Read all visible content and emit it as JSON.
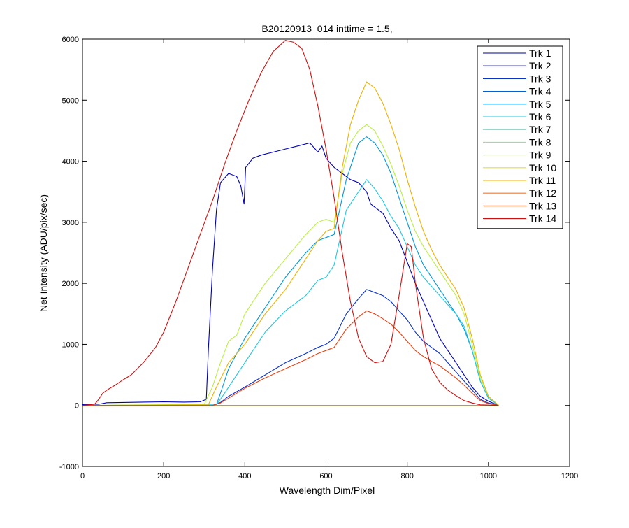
{
  "chart_data": {
    "type": "line",
    "title": "B20120913_014 inttime = 1.5,",
    "xlabel": "Wavelength Dim/Pixel",
    "ylabel": "Net Intensity (ADU/pix/sec)",
    "xlim": [
      0,
      1200
    ],
    "ylim": [
      -1000,
      6000
    ],
    "xticks": [
      0,
      200,
      400,
      600,
      800,
      1000,
      1200
    ],
    "yticks": [
      -1000,
      0,
      1000,
      2000,
      3000,
      4000,
      5000,
      6000
    ],
    "grid": false,
    "legend_position": "top-right",
    "series": [
      {
        "name": "Trk 1",
        "color": "#00008F",
        "points": [
          [
            0,
            0
          ],
          [
            1025,
            0
          ]
        ]
      },
      {
        "name": "Trk 2",
        "color": "#0000B8",
        "points": [
          [
            0,
            15
          ],
          [
            40,
            20
          ],
          [
            60,
            45
          ],
          [
            100,
            50
          ],
          [
            150,
            55
          ],
          [
            200,
            60
          ],
          [
            250,
            55
          ],
          [
            290,
            60
          ],
          [
            305,
            100
          ],
          [
            310,
            900
          ],
          [
            320,
            2200
          ],
          [
            330,
            3200
          ],
          [
            340,
            3650
          ],
          [
            360,
            3800
          ],
          [
            380,
            3750
          ],
          [
            390,
            3600
          ],
          [
            398,
            3300
          ],
          [
            402,
            3900
          ],
          [
            420,
            4050
          ],
          [
            440,
            4100
          ],
          [
            470,
            4150
          ],
          [
            500,
            4200
          ],
          [
            530,
            4250
          ],
          [
            560,
            4300
          ],
          [
            580,
            4150
          ],
          [
            590,
            4250
          ],
          [
            600,
            4050
          ],
          [
            620,
            3900
          ],
          [
            640,
            3800
          ],
          [
            660,
            3700
          ],
          [
            680,
            3650
          ],
          [
            700,
            3500
          ],
          [
            710,
            3300
          ],
          [
            740,
            3150
          ],
          [
            760,
            2900
          ],
          [
            780,
            2700
          ],
          [
            800,
            2350
          ],
          [
            820,
            2000
          ],
          [
            840,
            1700
          ],
          [
            860,
            1400
          ],
          [
            880,
            1100
          ],
          [
            900,
            900
          ],
          [
            920,
            700
          ],
          [
            940,
            500
          ],
          [
            960,
            300
          ],
          [
            980,
            150
          ],
          [
            1000,
            70
          ],
          [
            1025,
            0
          ]
        ]
      },
      {
        "name": "Trk 3",
        "color": "#0A33C8",
        "points": [
          [
            0,
            0
          ],
          [
            320,
            0
          ],
          [
            340,
            50
          ],
          [
            360,
            150
          ],
          [
            400,
            300
          ],
          [
            450,
            500
          ],
          [
            500,
            700
          ],
          [
            550,
            850
          ],
          [
            580,
            950
          ],
          [
            600,
            1000
          ],
          [
            620,
            1100
          ],
          [
            650,
            1500
          ],
          [
            680,
            1750
          ],
          [
            700,
            1900
          ],
          [
            720,
            1850
          ],
          [
            740,
            1800
          ],
          [
            760,
            1700
          ],
          [
            780,
            1550
          ],
          [
            800,
            1400
          ],
          [
            820,
            1200
          ],
          [
            840,
            1050
          ],
          [
            860,
            950
          ],
          [
            880,
            850
          ],
          [
            900,
            700
          ],
          [
            920,
            550
          ],
          [
            940,
            400
          ],
          [
            960,
            250
          ],
          [
            980,
            100
          ],
          [
            1000,
            40
          ],
          [
            1025,
            0
          ]
        ]
      },
      {
        "name": "Trk 4",
        "color": "#0060D0",
        "points": [
          [
            0,
            0
          ],
          [
            1025,
            0
          ]
        ]
      },
      {
        "name": "Trk 5",
        "color": "#0098DE",
        "points": [
          [
            0,
            0
          ],
          [
            330,
            10
          ],
          [
            345,
            300
          ],
          [
            360,
            600
          ],
          [
            380,
            850
          ],
          [
            400,
            1100
          ],
          [
            450,
            1600
          ],
          [
            500,
            2100
          ],
          [
            550,
            2500
          ],
          [
            580,
            2700
          ],
          [
            600,
            2750
          ],
          [
            620,
            2800
          ],
          [
            650,
            3700
          ],
          [
            680,
            4300
          ],
          [
            700,
            4400
          ],
          [
            720,
            4300
          ],
          [
            740,
            4100
          ],
          [
            760,
            3800
          ],
          [
            780,
            3400
          ],
          [
            800,
            3000
          ],
          [
            820,
            2600
          ],
          [
            840,
            2300
          ],
          [
            860,
            2100
          ],
          [
            880,
            1900
          ],
          [
            900,
            1700
          ],
          [
            920,
            1500
          ],
          [
            940,
            1250
          ],
          [
            960,
            900
          ],
          [
            980,
            400
          ],
          [
            1000,
            120
          ],
          [
            1025,
            0
          ]
        ]
      },
      {
        "name": "Trk 6",
        "color": "#1FC8E0",
        "points": [
          [
            0,
            0
          ],
          [
            330,
            10
          ],
          [
            350,
            200
          ],
          [
            380,
            500
          ],
          [
            400,
            700
          ],
          [
            450,
            1200
          ],
          [
            500,
            1550
          ],
          [
            550,
            1800
          ],
          [
            580,
            2050
          ],
          [
            600,
            2100
          ],
          [
            620,
            2300
          ],
          [
            650,
            3200
          ],
          [
            680,
            3500
          ],
          [
            700,
            3700
          ],
          [
            720,
            3550
          ],
          [
            740,
            3350
          ],
          [
            760,
            3100
          ],
          [
            780,
            2900
          ],
          [
            800,
            2600
          ],
          [
            820,
            2300
          ],
          [
            840,
            2100
          ],
          [
            860,
            1950
          ],
          [
            880,
            1800
          ],
          [
            900,
            1650
          ],
          [
            920,
            1500
          ],
          [
            940,
            1300
          ],
          [
            960,
            900
          ],
          [
            980,
            400
          ],
          [
            1000,
            120
          ],
          [
            1025,
            0
          ]
        ]
      },
      {
        "name": "Trk 7",
        "color": "#40E0C8",
        "points": [
          [
            0,
            0
          ],
          [
            1025,
            0
          ]
        ]
      },
      {
        "name": "Trk 8",
        "color": "#80F080",
        "points": [
          [
            0,
            0
          ],
          [
            1025,
            0
          ]
        ]
      },
      {
        "name": "Trk 9",
        "color": "#B8F040",
        "points": [
          [
            0,
            0
          ],
          [
            300,
            20
          ],
          [
            320,
            300
          ],
          [
            340,
            700
          ],
          [
            360,
            1050
          ],
          [
            380,
            1150
          ],
          [
            400,
            1500
          ],
          [
            450,
            2000
          ],
          [
            500,
            2400
          ],
          [
            550,
            2800
          ],
          [
            580,
            3000
          ],
          [
            600,
            3050
          ],
          [
            620,
            3000
          ],
          [
            640,
            3800
          ],
          [
            660,
            4300
          ],
          [
            680,
            4500
          ],
          [
            700,
            4600
          ],
          [
            720,
            4500
          ],
          [
            740,
            4250
          ],
          [
            760,
            3950
          ],
          [
            780,
            3600
          ],
          [
            800,
            3200
          ],
          [
            820,
            2850
          ],
          [
            840,
            2600
          ],
          [
            860,
            2400
          ],
          [
            880,
            2200
          ],
          [
            900,
            2000
          ],
          [
            920,
            1800
          ],
          [
            940,
            1500
          ],
          [
            960,
            1000
          ],
          [
            980,
            450
          ],
          [
            1000,
            150
          ],
          [
            1025,
            0
          ]
        ]
      },
      {
        "name": "Trk 10",
        "color": "#E8E020",
        "points": [
          [
            0,
            0
          ],
          [
            1025,
            0
          ]
        ]
      },
      {
        "name": "Trk 11",
        "color": "#F0B000",
        "points": [
          [
            0,
            0
          ],
          [
            310,
            10
          ],
          [
            330,
            300
          ],
          [
            360,
            700
          ],
          [
            400,
            1000
          ],
          [
            450,
            1500
          ],
          [
            500,
            1900
          ],
          [
            550,
            2400
          ],
          [
            580,
            2700
          ],
          [
            600,
            2850
          ],
          [
            620,
            2900
          ],
          [
            640,
            3900
          ],
          [
            660,
            4600
          ],
          [
            680,
            5000
          ],
          [
            700,
            5300
          ],
          [
            720,
            5200
          ],
          [
            740,
            4950
          ],
          [
            760,
            4600
          ],
          [
            780,
            4200
          ],
          [
            800,
            3700
          ],
          [
            820,
            3250
          ],
          [
            840,
            2850
          ],
          [
            860,
            2550
          ],
          [
            880,
            2300
          ],
          [
            900,
            2100
          ],
          [
            920,
            1900
          ],
          [
            940,
            1600
          ],
          [
            960,
            1100
          ],
          [
            980,
            500
          ],
          [
            1000,
            150
          ],
          [
            1025,
            0
          ]
        ]
      },
      {
        "name": "Trk 12",
        "color": "#F07830",
        "points": [
          [
            0,
            0
          ],
          [
            1025,
            0
          ]
        ]
      },
      {
        "name": "Trk 13",
        "color": "#E84010",
        "points": [
          [
            0,
            0
          ],
          [
            320,
            0
          ],
          [
            340,
            40
          ],
          [
            360,
            120
          ],
          [
            400,
            280
          ],
          [
            450,
            450
          ],
          [
            500,
            600
          ],
          [
            550,
            750
          ],
          [
            580,
            850
          ],
          [
            600,
            900
          ],
          [
            620,
            950
          ],
          [
            650,
            1250
          ],
          [
            680,
            1450
          ],
          [
            700,
            1550
          ],
          [
            720,
            1500
          ],
          [
            740,
            1420
          ],
          [
            760,
            1330
          ],
          [
            780,
            1200
          ],
          [
            800,
            1050
          ],
          [
            820,
            900
          ],
          [
            840,
            800
          ],
          [
            860,
            720
          ],
          [
            880,
            650
          ],
          [
            900,
            550
          ],
          [
            920,
            450
          ],
          [
            940,
            330
          ],
          [
            960,
            200
          ],
          [
            980,
            80
          ],
          [
            1000,
            30
          ],
          [
            1025,
            0
          ]
        ]
      },
      {
        "name": "Trk 14",
        "color": "#D01010",
        "points": [
          [
            0,
            0
          ],
          [
            30,
            20
          ],
          [
            40,
            100
          ],
          [
            50,
            200
          ],
          [
            60,
            250
          ],
          [
            80,
            330
          ],
          [
            100,
            420
          ],
          [
            120,
            500
          ],
          [
            150,
            700
          ],
          [
            180,
            950
          ],
          [
            200,
            1200
          ],
          [
            230,
            1700
          ],
          [
            260,
            2250
          ],
          [
            290,
            2800
          ],
          [
            320,
            3350
          ],
          [
            350,
            3950
          ],
          [
            380,
            4500
          ],
          [
            410,
            5000
          ],
          [
            440,
            5450
          ],
          [
            470,
            5800
          ],
          [
            500,
            5980
          ],
          [
            520,
            5950
          ],
          [
            540,
            5850
          ],
          [
            560,
            5500
          ],
          [
            580,
            4900
          ],
          [
            600,
            4200
          ],
          [
            620,
            3400
          ],
          [
            640,
            2500
          ],
          [
            660,
            1700
          ],
          [
            680,
            1100
          ],
          [
            700,
            800
          ],
          [
            720,
            700
          ],
          [
            740,
            720
          ],
          [
            760,
            1000
          ],
          [
            780,
            1800
          ],
          [
            800,
            2650
          ],
          [
            810,
            2600
          ],
          [
            820,
            2000
          ],
          [
            840,
            1100
          ],
          [
            860,
            600
          ],
          [
            880,
            380
          ],
          [
            900,
            250
          ],
          [
            920,
            160
          ],
          [
            940,
            80
          ],
          [
            960,
            40
          ],
          [
            980,
            10
          ],
          [
            1025,
            0
          ]
        ]
      }
    ]
  }
}
